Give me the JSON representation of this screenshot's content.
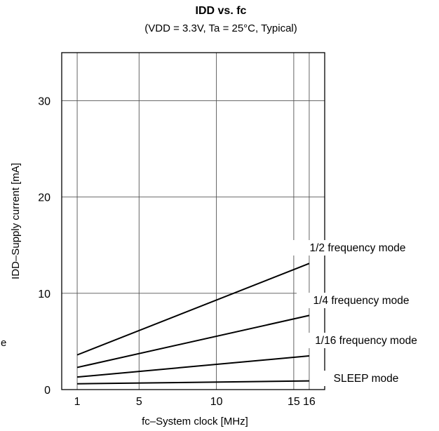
{
  "chart_data": {
    "type": "line",
    "title": "IDD vs. fc",
    "subtitle": "(VDD = 3.3V, Ta = 25°C, Typical)",
    "xlabel": "fc–System clock [MHz]",
    "ylabel": "IDD–Supply current  [mA]",
    "x_ticks": [
      "1",
      "5",
      "10",
      "15",
      "16"
    ],
    "y_ticks": [
      "0",
      "10",
      "20",
      "30"
    ],
    "xlim": [
      0,
      17
    ],
    "ylim": [
      0,
      35
    ],
    "grid": true,
    "stray_text": "e",
    "series": [
      {
        "name": "1/2 frequency mode",
        "x": [
          1,
          16
        ],
        "values": [
          3.6,
          13.1
        ]
      },
      {
        "name": "1/4 frequency mode",
        "x": [
          1,
          16
        ],
        "values": [
          2.3,
          7.7
        ]
      },
      {
        "name": "1/16 frequency mode",
        "x": [
          1,
          16
        ],
        "values": [
          1.3,
          3.5
        ]
      },
      {
        "name": "SLEEP mode",
        "x": [
          1,
          16
        ],
        "values": [
          0.6,
          0.9
        ]
      }
    ]
  }
}
